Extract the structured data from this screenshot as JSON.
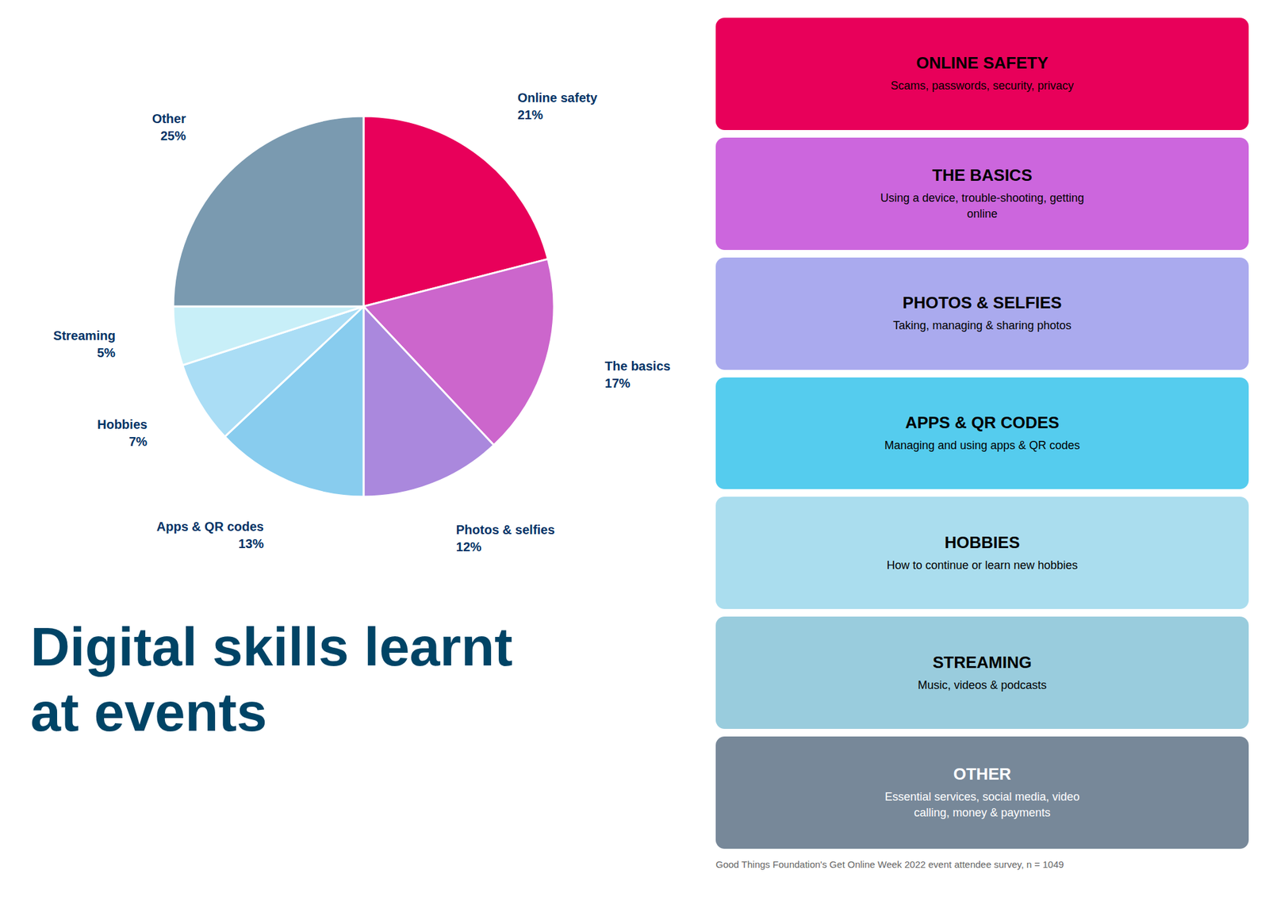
{
  "chart_data": {
    "type": "pie",
    "title": "Digital skills learnt\nat events",
    "categories": [
      "Online safety",
      "The basics",
      "Photos & selfies",
      "Apps & QR codes",
      "Hobbies",
      "Streaming",
      "Other"
    ],
    "values": [
      21,
      17,
      12,
      13,
      7,
      5,
      25
    ],
    "value_labels": [
      "21%",
      "17%",
      "12%",
      "13%",
      "7%",
      "5%",
      "25%"
    ],
    "colors": [
      "#E8005A",
      "#CC66CC",
      "#AA88DD",
      "#88CCEE",
      "#AADDF5",
      "#C8EFF8",
      "#7A9AB0"
    ],
    "data_labels": true,
    "annotations": [
      {
        "title": "ONLINE SAFETY",
        "text": "Scams, passwords, security, privacy",
        "color": "#E8005A",
        "text_color": "#000000"
      },
      {
        "title": "THE BASICS",
        "text": "Using a device, trouble-shooting, getting\nonline",
        "color": "#CC66DD",
        "text_color": "#000000"
      },
      {
        "title": "PHOTOS & SELFIES",
        "text": "Taking, managing & sharing photos",
        "color": "#AAAAEE",
        "text_color": "#000000"
      },
      {
        "title": "APPS & QR CODES",
        "text": "Managing and using apps & QR codes",
        "color": "#55CCEE",
        "text_color": "#000000"
      },
      {
        "title": "HOBBIES",
        "text": "How to continue or learn new hobbies",
        "color": "#AADDEE",
        "text_color": "#000000"
      },
      {
        "title": "STREAMING",
        "text": "Music, videos & podcasts",
        "color": "#99CCDD",
        "text_color": "#000000"
      },
      {
        "title": "OTHER",
        "text": "Essential services, social media, video\ncalling, money & payments",
        "color": "#778899",
        "text_color": "#FFFFFF"
      },
      {
        "text": "Good Things Foundation's Get Online Week 2022 event attendee survey, n = 1049",
        "color": "#666666"
      }
    ]
  }
}
